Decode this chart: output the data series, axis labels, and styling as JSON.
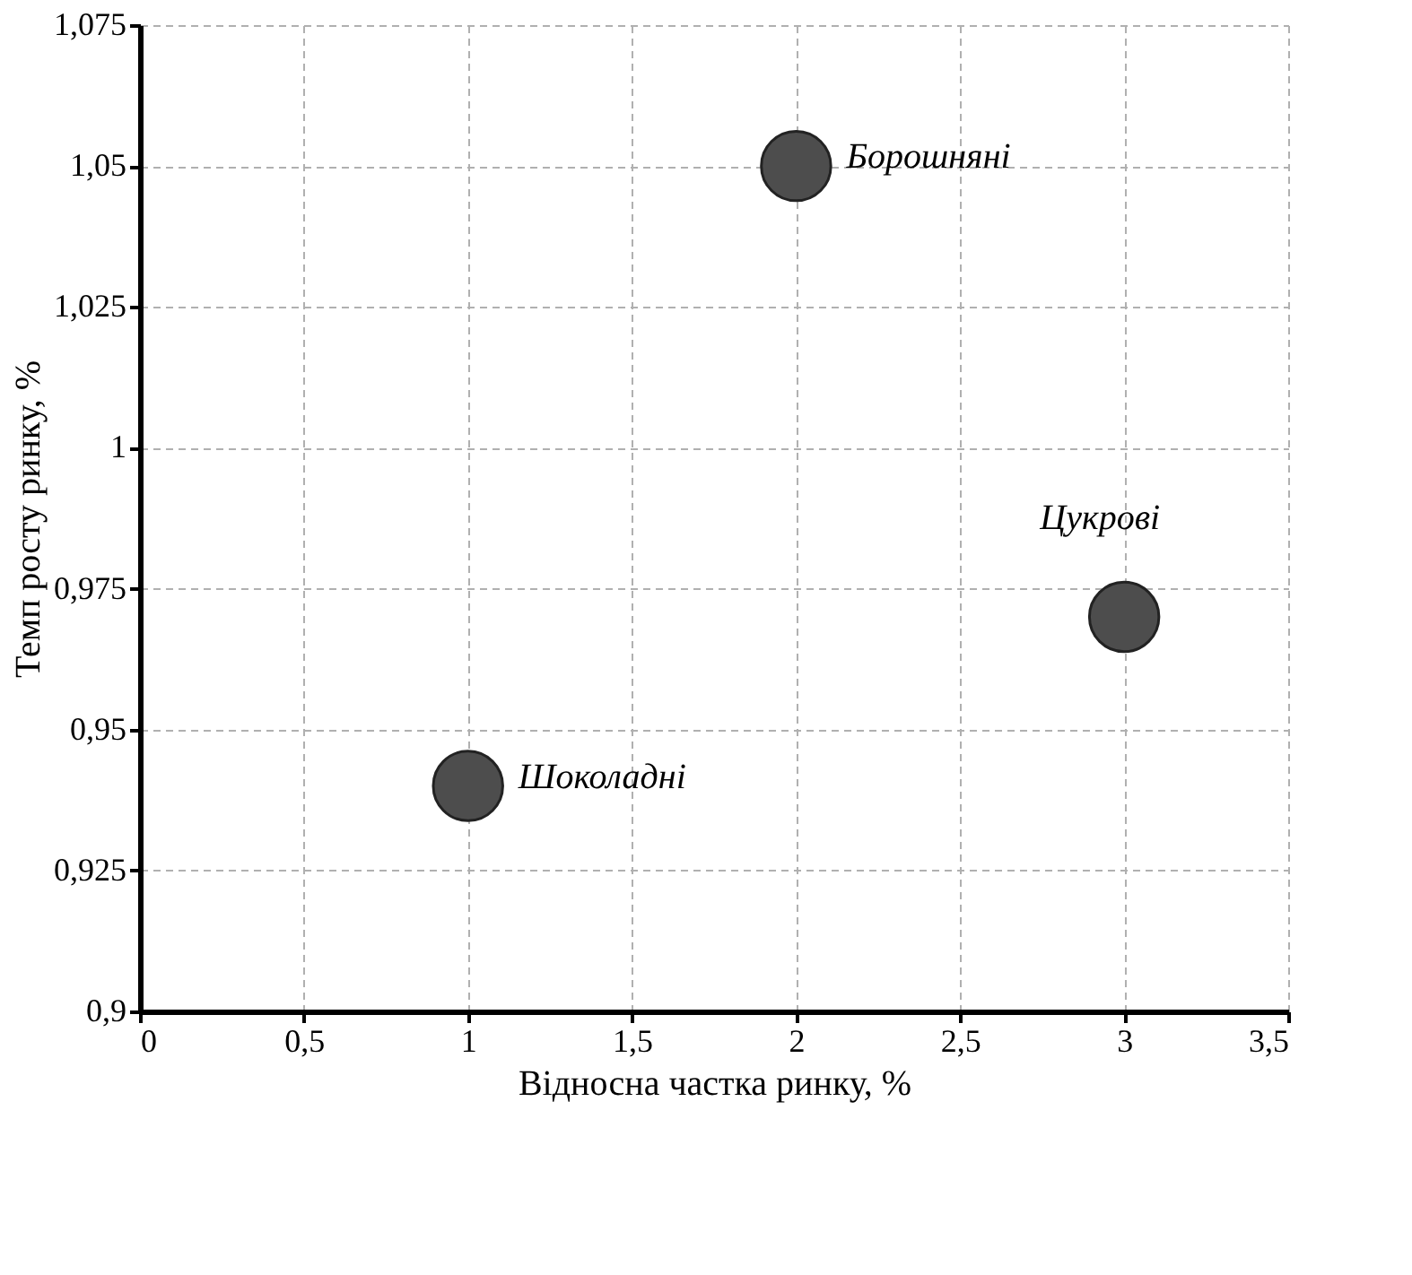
{
  "chart_data": {
    "type": "scatter",
    "xlabel": "Відносна частка ринку, %",
    "ylabel": "Темп росту ринку, %",
    "x": [
      1,
      2,
      3
    ],
    "series": [
      {
        "color": "#4d4d4d",
        "values": [
          0.94,
          1.05,
          0.97
        ]
      }
    ],
    "marker": "circle",
    "xlim": [
      0,
      3.5
    ],
    "xticks": [
      0,
      {
        "value": 0.5,
        "label": "0,5"
      },
      1,
      {
        "value": 1.5,
        "label": "1,5"
      },
      2,
      {
        "value": 2.5,
        "label": "2,5"
      },
      3,
      {
        "value": 3.5,
        "label": "3,5"
      }
    ],
    "ylim": [
      0.9,
      1.075
    ],
    "yticks": [
      {
        "value": 0.9,
        "label": "0,9"
      },
      {
        "value": 0.925,
        "label": "0,925"
      },
      {
        "value": 0.95,
        "label": "0,95"
      },
      {
        "value": 0.975,
        "label": "0,975"
      },
      {
        "value": 1,
        "label": "1"
      },
      {
        "value": 1.025,
        "label": "1,025"
      },
      {
        "value": 1.05,
        "label": "1,05"
      },
      {
        "value": 1.075,
        "label": "1,075"
      }
    ],
    "grid": true,
    "annotations": [
      {
        "text": "Шоколадні",
        "x": 1,
        "y": 0.94
      },
      {
        "text": "Борошняні",
        "x": 2,
        "y": 1.05
      },
      {
        "text": "Цукрові",
        "x": 3,
        "y": 0.97
      }
    ]
  }
}
